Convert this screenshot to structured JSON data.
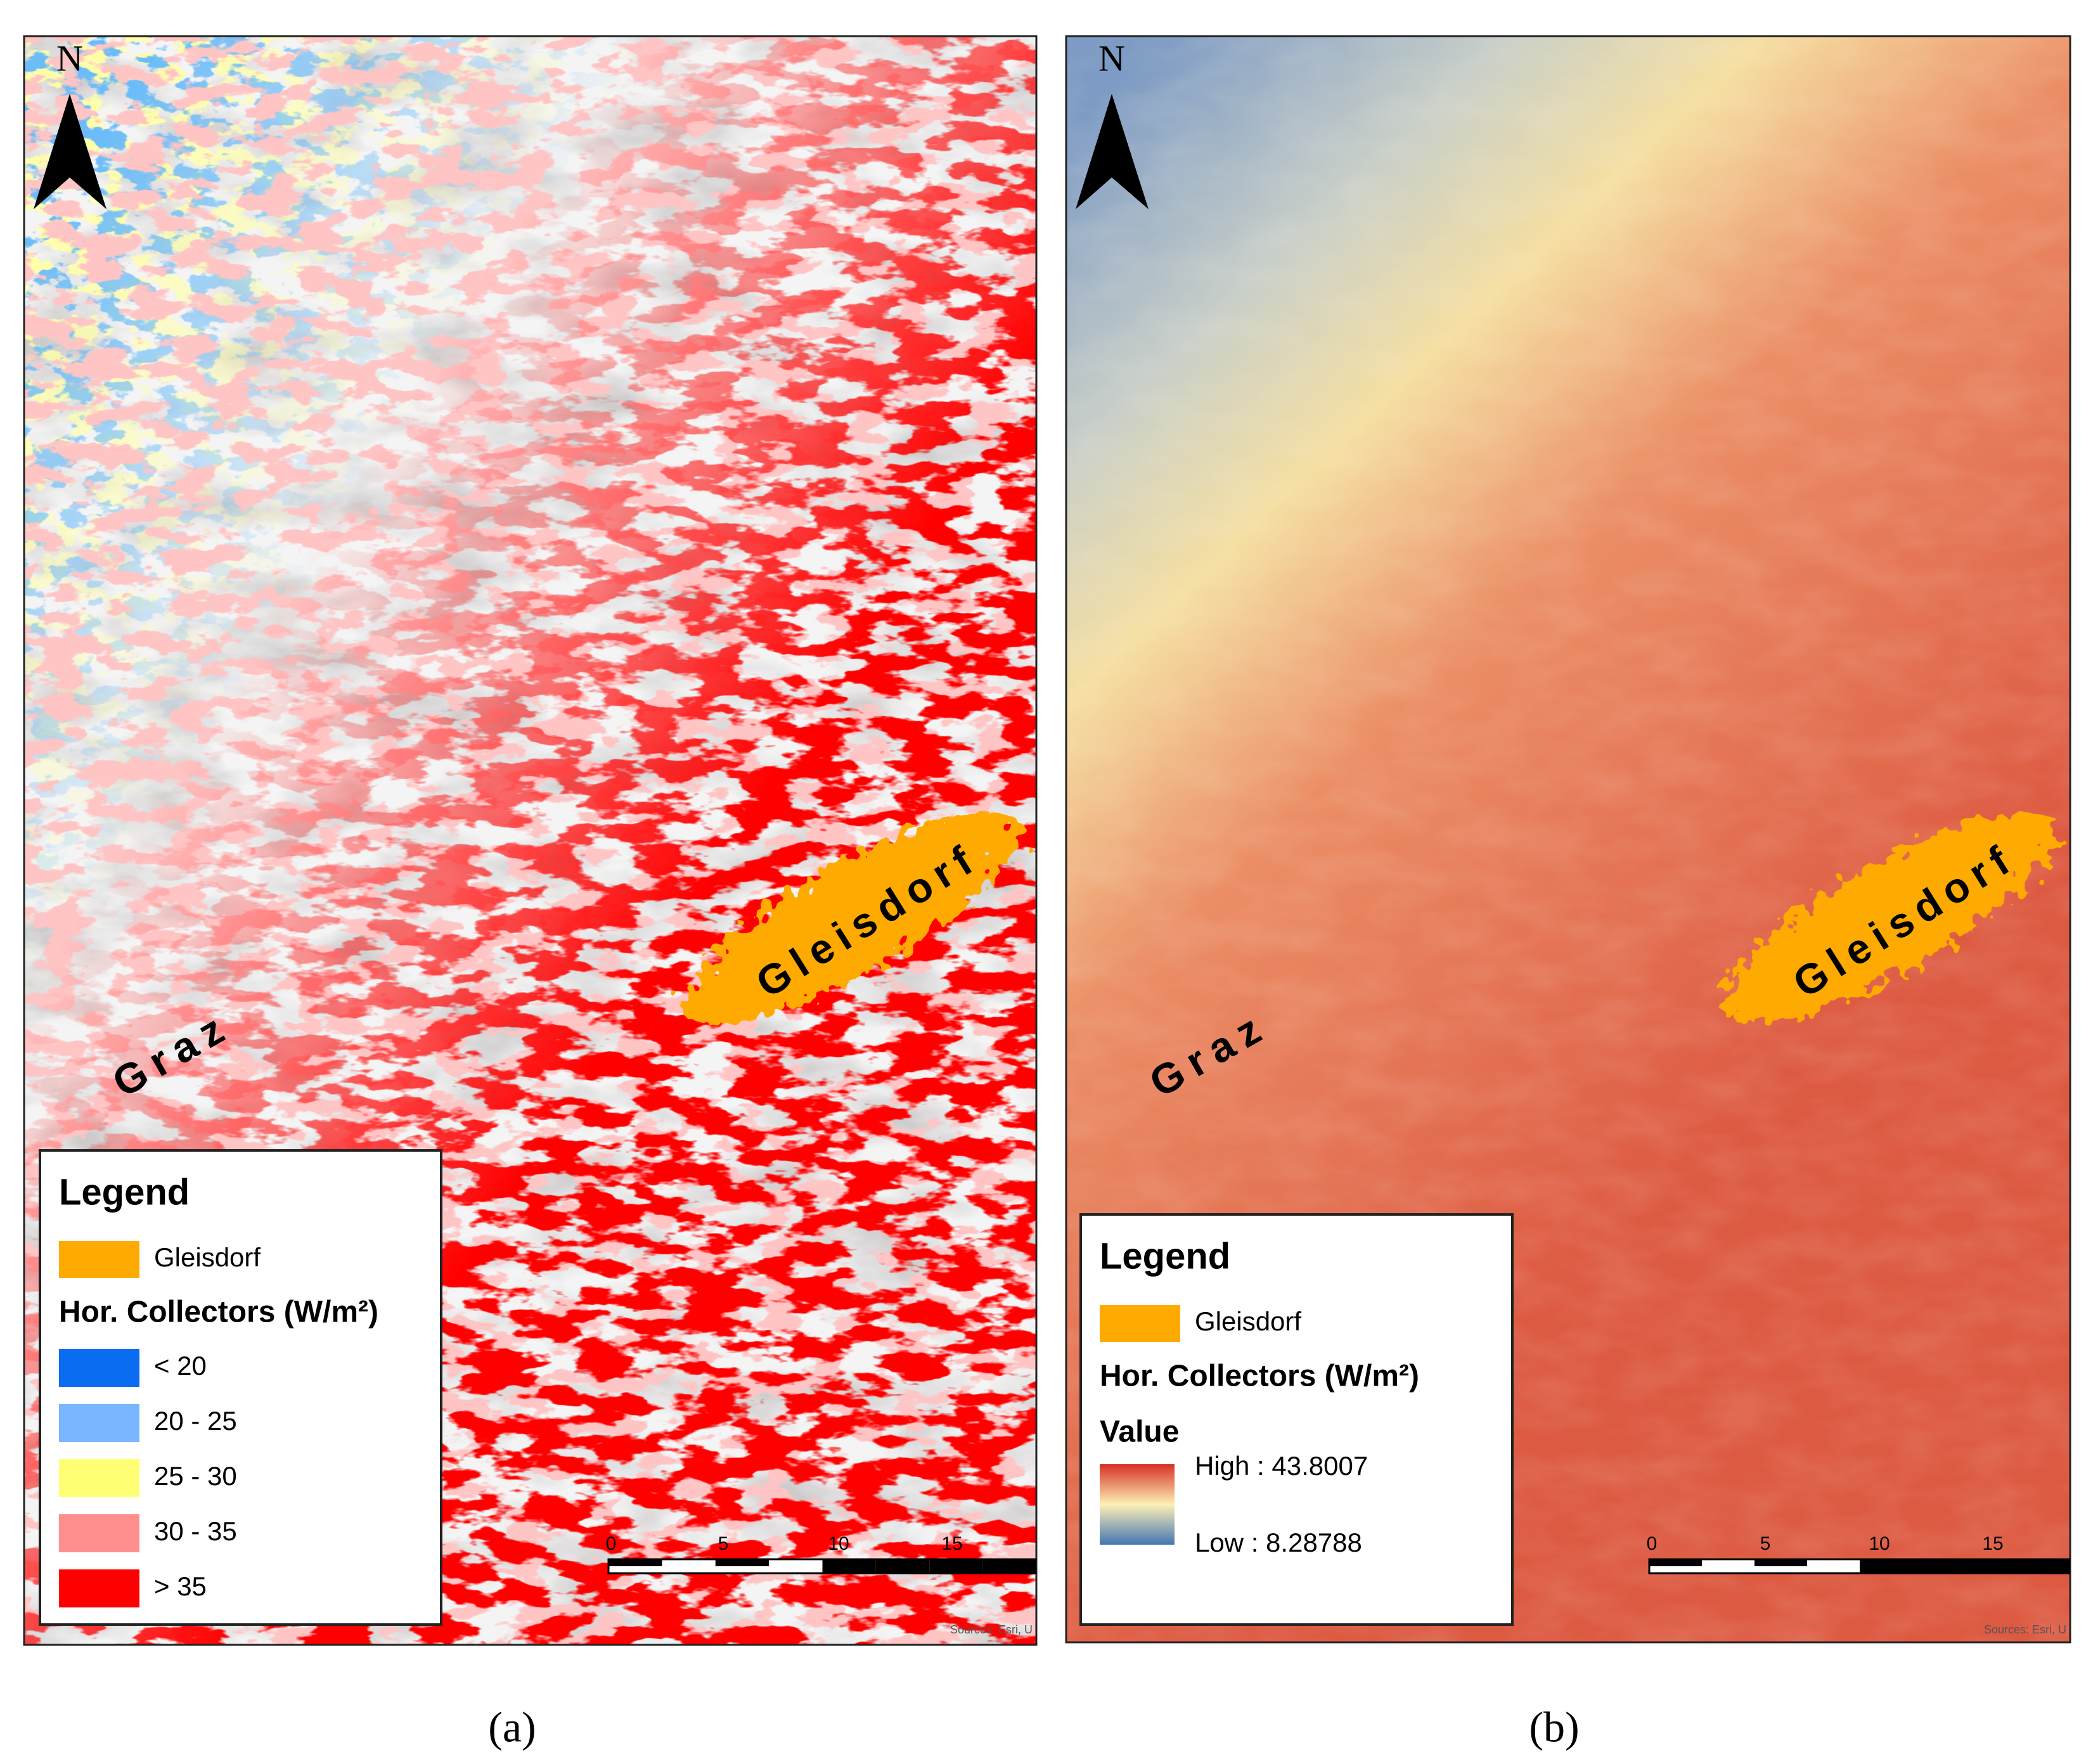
{
  "panels": [
    {
      "label": "(a)",
      "north": "N",
      "places": [
        "Graz",
        "Gleisdorf"
      ],
      "legend": {
        "title": "Legend",
        "area": {
          "label": "Gleisdorf",
          "color": "#ffaa00"
        },
        "subtitle": "Hor. Collectors (W/m²)",
        "classes": [
          {
            "label": "< 20",
            "color": "#0a6cf0"
          },
          {
            "label": "20 - 25",
            "color": "#7ab6ff"
          },
          {
            "label": "25 - 30",
            "color": "#ffff73"
          },
          {
            "label": "30 - 35",
            "color": "#ff8f8f"
          },
          {
            "label": "> 35",
            "color": "#ff0000"
          }
        ]
      },
      "scalebar": [
        "0",
        "5",
        "10",
        "15"
      ],
      "attribution": "Sources: Esri, U"
    },
    {
      "label": "(b)",
      "north": "N",
      "places": [
        "Graz",
        "Gleisdorf"
      ],
      "legend": {
        "title": "Legend",
        "area": {
          "label": "Gleisdorf",
          "color": "#ffaa00"
        },
        "subtitle": "Hor. Collectors (W/m²)",
        "field": "Value",
        "high": "High : 43.8007",
        "low": "Low : 8.28788"
      },
      "scalebar": [
        "0",
        "5",
        "10",
        "15"
      ],
      "attribution": "Sources: Esri, U"
    }
  ]
}
